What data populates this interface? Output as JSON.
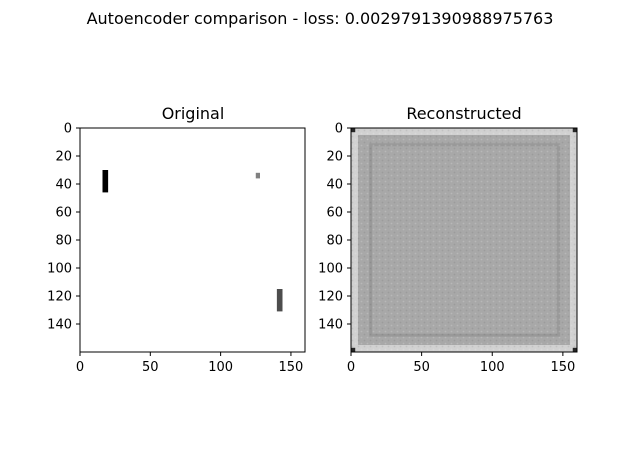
{
  "figure": {
    "suptitle": "Autoencoder comparison - loss: 0.0029791390988975763"
  },
  "colors": {
    "background": "#ffffff",
    "axis": "#000000",
    "bar_black": "#000000",
    "bar_gray": "#808080",
    "bar_dark": "#4a4a4a",
    "recon_gray": "#a9a9a9",
    "recon_border_light": "#d8d8d8",
    "recon_border_dark": "#3a3a3a"
  },
  "chart_data": [
    {
      "type": "heatmap",
      "title": "Original",
      "xlabel": "",
      "ylabel": "",
      "xlim": [
        0,
        160
      ],
      "ylim": [
        160,
        0
      ],
      "xticks": [
        0,
        50,
        100,
        150
      ],
      "yticks": [
        0,
        20,
        40,
        60,
        80,
        100,
        120,
        140
      ],
      "grid": false,
      "colormap": "gray",
      "background_value": 1.0,
      "objects": [
        {
          "x0": 16,
          "x1": 20,
          "y0": 30,
          "y1": 46,
          "value": 0.0
        },
        {
          "x0": 125,
          "x1": 128,
          "y0": 32,
          "y1": 36,
          "value": 0.5
        },
        {
          "x0": 140,
          "x1": 144,
          "y0": 115,
          "y1": 131,
          "value": 0.3
        }
      ]
    },
    {
      "type": "heatmap",
      "title": "Reconstructed",
      "xlabel": "",
      "ylabel": "",
      "xlim": [
        0,
        160
      ],
      "ylim": [
        160,
        0
      ],
      "xticks": [
        0,
        50,
        100,
        150
      ],
      "yticks": [
        0,
        20,
        40,
        60,
        80,
        100,
        120,
        140
      ],
      "grid": false,
      "colormap": "gray",
      "fill_value": 0.66,
      "edge_band_value": 0.82,
      "edge_band_width": 5,
      "inner_frame": {
        "x0": 14,
        "x1": 147,
        "y0": 12,
        "y1": 148,
        "value": 0.6
      },
      "corner_value": 0.15
    }
  ]
}
